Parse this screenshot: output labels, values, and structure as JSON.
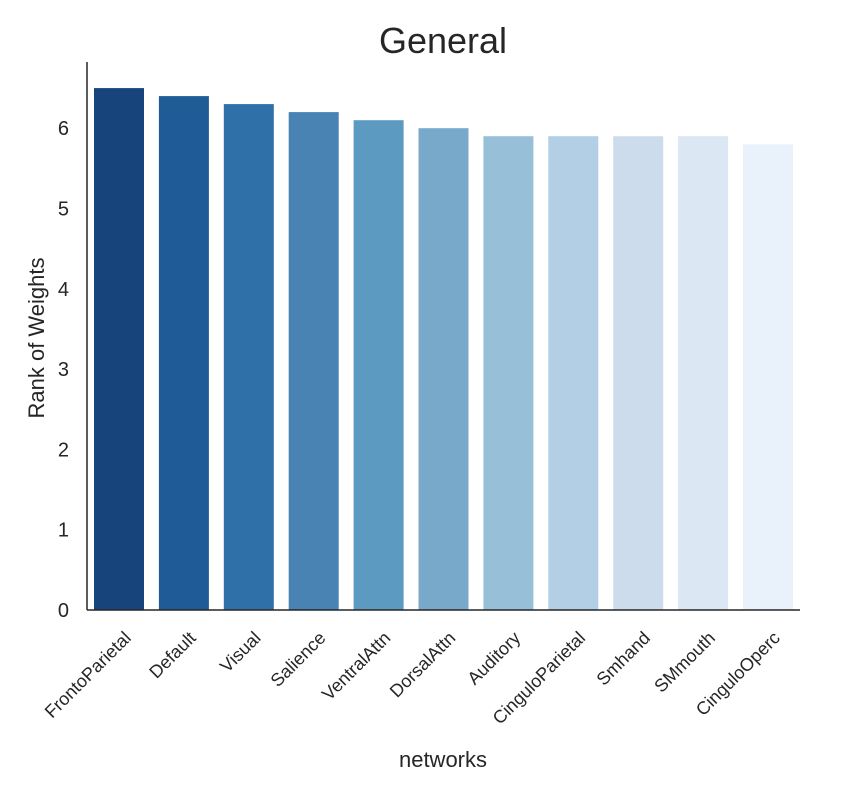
{
  "chart_data": {
    "type": "bar",
    "title": "General",
    "xlabel": "networks",
    "ylabel": "Rank of Weights",
    "ylim": [
      0,
      6.8
    ],
    "yticks": [
      0,
      1,
      2,
      3,
      4,
      5,
      6
    ],
    "categories": [
      "FrontoParietal",
      "Default",
      "Visual",
      "Salience",
      "VentralAttn",
      "DorsalAttn",
      "Auditory",
      "CinguloParietal",
      "Smhand",
      "SMmouth",
      "CinguloOperc"
    ],
    "values": [
      6.5,
      6.4,
      6.3,
      6.2,
      6.1,
      6.0,
      5.9,
      5.9,
      5.9,
      5.9,
      5.8
    ],
    "colors": [
      "#17447b",
      "#1f5b96",
      "#3070a8",
      "#4883b3",
      "#5d9ac1",
      "#78a9cb",
      "#97bfd8",
      "#b2cfe5",
      "#ccdcec",
      "#dbe8f4",
      "#e9f1fa"
    ],
    "grid": false,
    "spines": [
      "left",
      "bottom"
    ]
  }
}
